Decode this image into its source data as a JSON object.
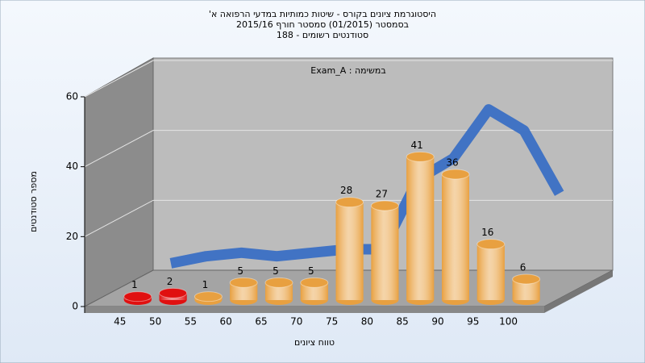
{
  "chart_data": {
    "type": "bar3d",
    "title": [
      "היסטוגרמת ציונים בקורס - שיטות כמותיות במדעי הרפואה א'",
      "בסמסטר  (01/2015)  סמסטר חורף 2015/16",
      "סטודנטים רשומים - 188"
    ],
    "annotation": "במשימה : Exam_A",
    "x_label": "טווח ציונים",
    "y_label": "מספר סטודנטים",
    "categories": [
      45,
      50,
      55,
      60,
      65,
      70,
      75,
      80,
      85,
      90,
      95,
      100
    ],
    "values": [
      1,
      2,
      1,
      5,
      5,
      5,
      28,
      27,
      41,
      36,
      16,
      6
    ],
    "colors": [
      "#e01010",
      "#e01010",
      "#e8a040",
      "#e8a040",
      "#e8a040",
      "#e8a040",
      "#e8a040",
      "#e8a040",
      "#e8a040",
      "#e8a040",
      "#e8a040",
      "#e8a040"
    ],
    "trend": {
      "color": "#3a6fc4",
      "values": [
        2,
        4,
        5,
        4,
        5,
        6,
        6,
        26,
        32,
        46,
        40,
        22
      ]
    },
    "ylim": [
      0,
      60
    ],
    "yticks": [
      0,
      20,
      40,
      60
    ],
    "grid": true
  }
}
